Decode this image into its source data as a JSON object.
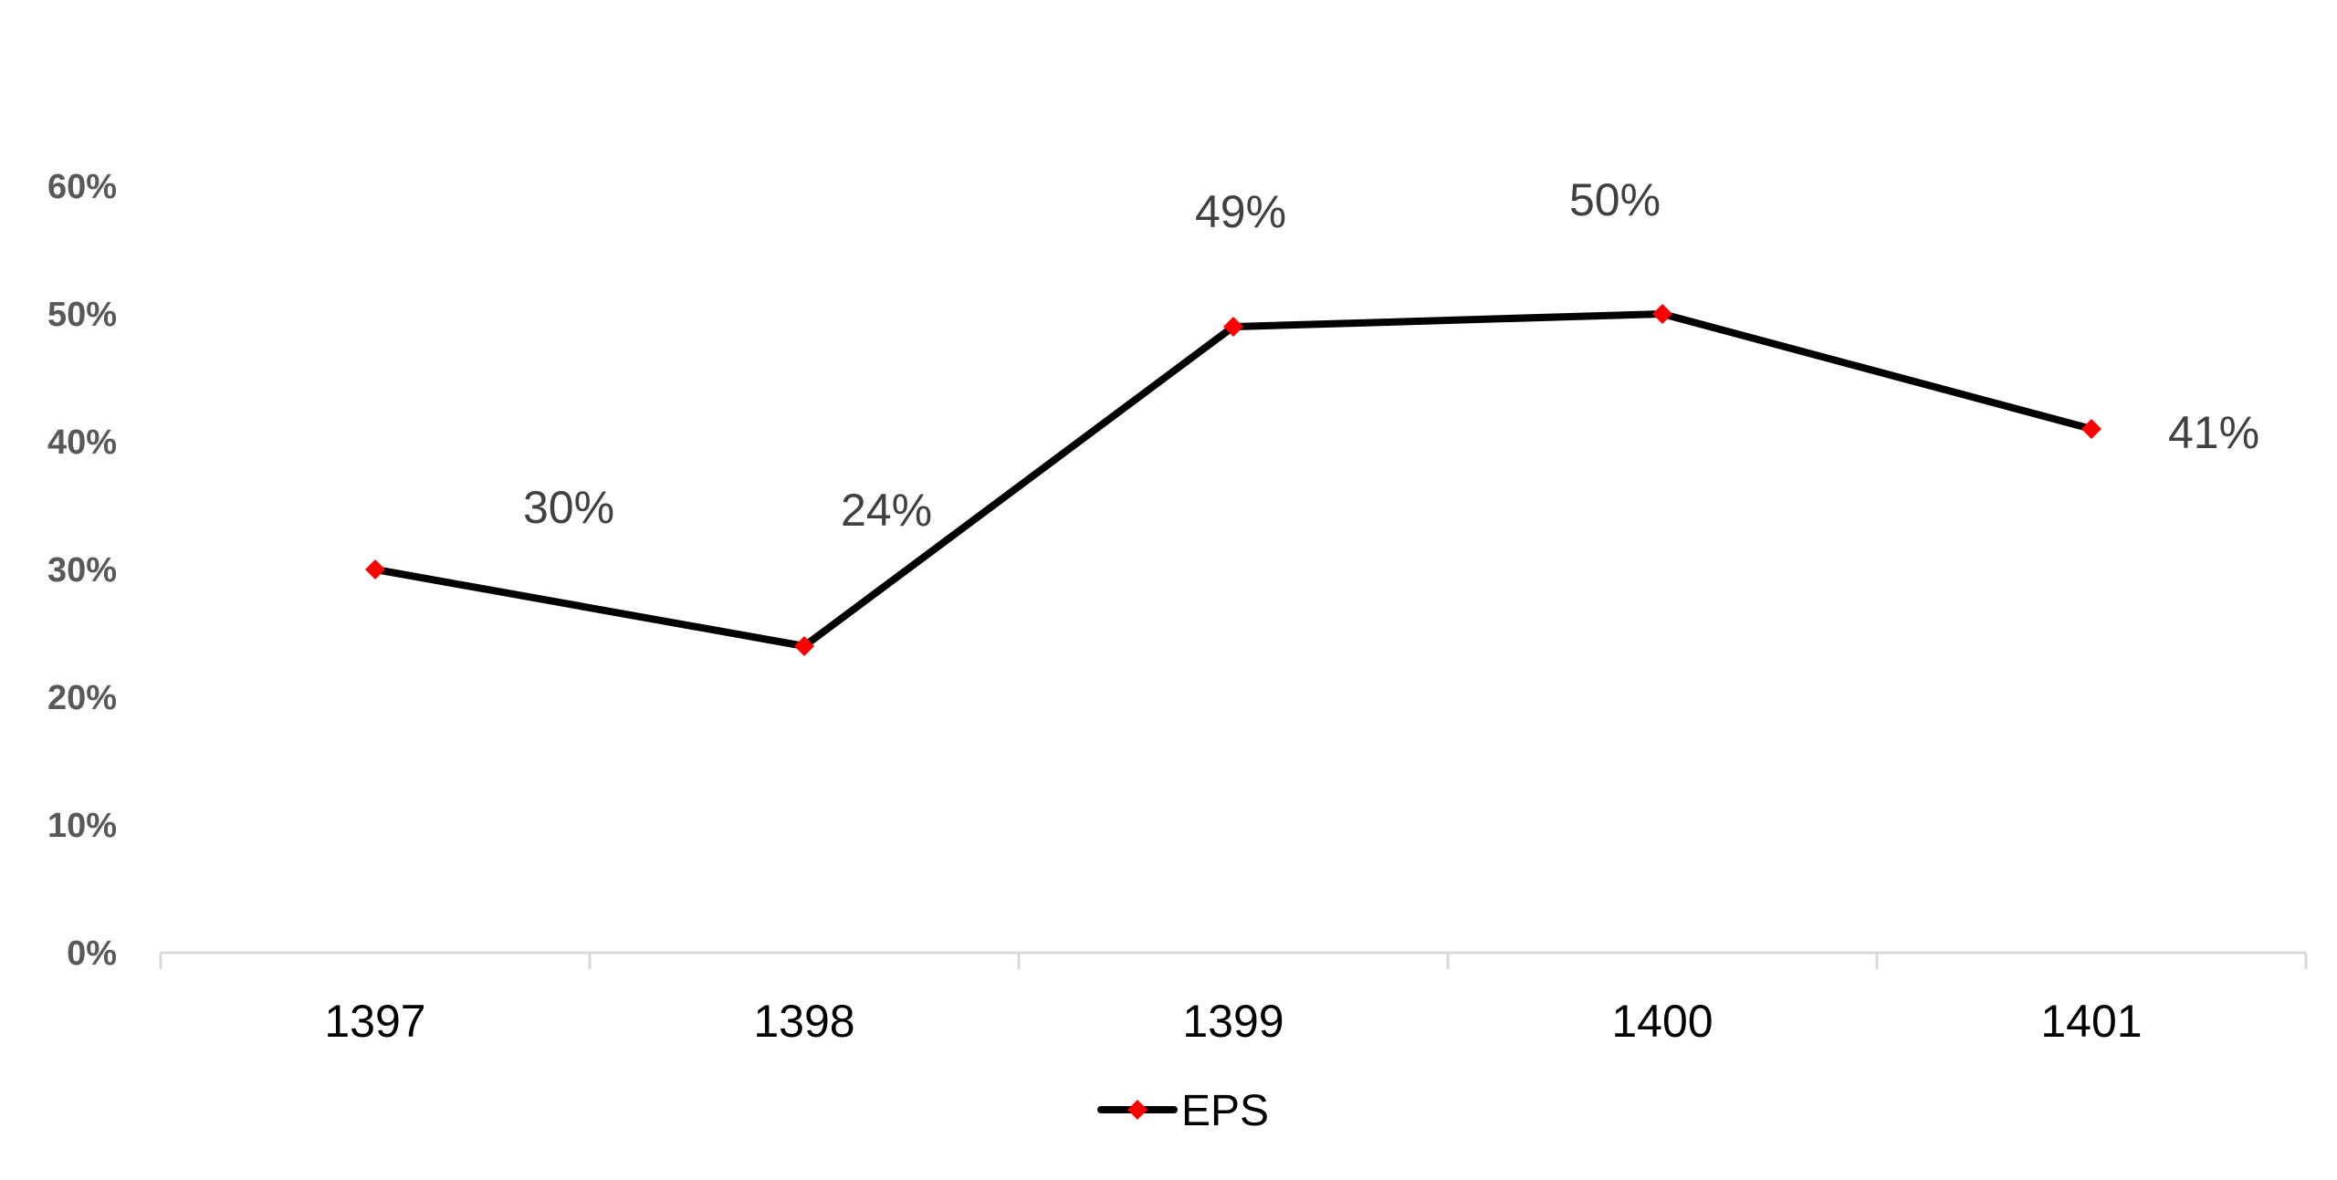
{
  "chart_data": {
    "type": "line",
    "categories": [
      "1397",
      "1398",
      "1399",
      "1400",
      "1401"
    ],
    "series": [
      {
        "name": "EPS",
        "values": [
          0.3,
          0.24,
          0.49,
          0.5,
          0.41
        ],
        "labels": [
          "30%",
          "24%",
          "49%",
          "50%",
          "41%"
        ]
      }
    ],
    "yticks": [
      "0%",
      "10%",
      "20%",
      "30%",
      "40%",
      "50%",
      "60%"
    ],
    "ylim": [
      0,
      0.6
    ],
    "title": "",
    "xlabel": "",
    "ylabel": "",
    "grid": false,
    "legend_position": "bottom",
    "colors": {
      "line": "#000000",
      "marker": "#ff0000",
      "axis": "#d9d9d9"
    }
  }
}
